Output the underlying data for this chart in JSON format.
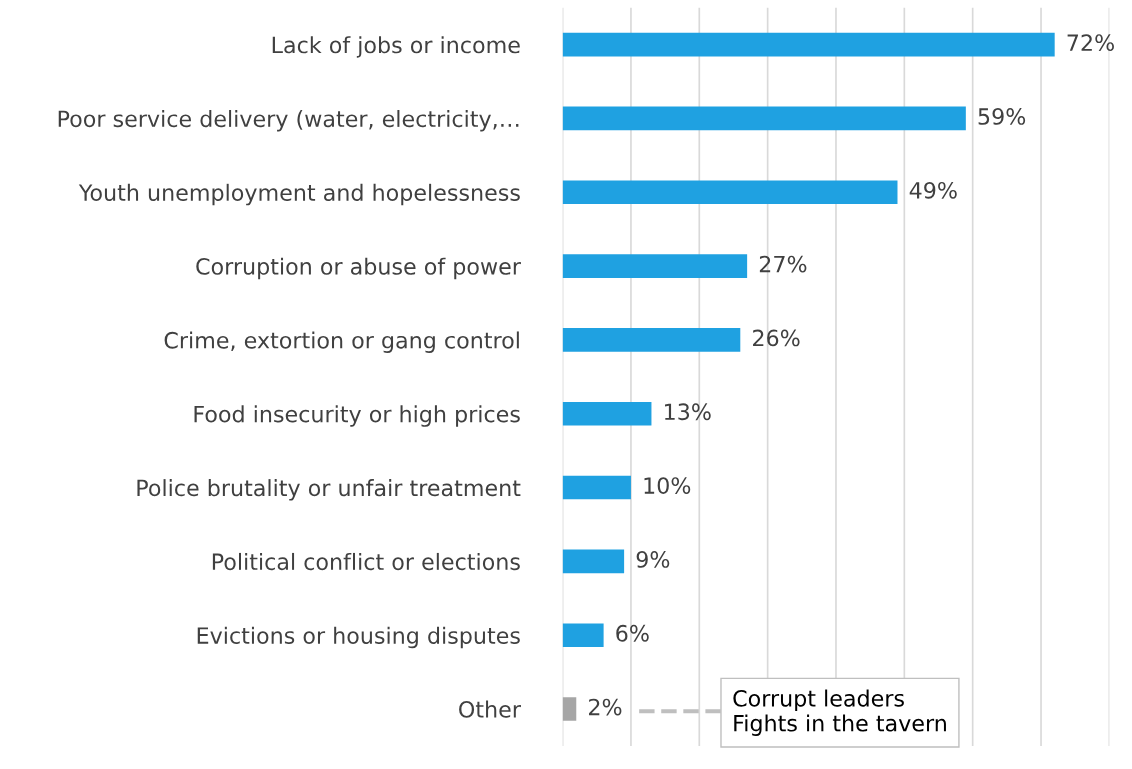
{
  "chart_data": {
    "type": "bar",
    "orientation": "horizontal",
    "categories": [
      "Lack of jobs or income",
      "Poor service delivery (water, electricity,…",
      "Youth unemployment and hopelessness",
      "Corruption or abuse of power",
      "Crime, extortion or gang control",
      "Food insecurity or high prices",
      "Police brutality or unfair treatment",
      "Political conflict or elections",
      "Evictions or housing disputes",
      "Other"
    ],
    "values": [
      72,
      59,
      49,
      27,
      26,
      13,
      10,
      9,
      6,
      2
    ],
    "colors": [
      "#1fa1e1",
      "#1fa1e1",
      "#1fa1e1",
      "#1fa1e1",
      "#1fa1e1",
      "#1fa1e1",
      "#1fa1e1",
      "#1fa1e1",
      "#1fa1e1",
      "#a6a6a6"
    ],
    "value_labels": [
      "72%",
      "59%",
      "49%",
      "27%",
      "26%",
      "13%",
      "10%",
      "9%",
      "6%",
      "2%"
    ],
    "xlim": [
      0,
      80
    ],
    "xticks": [
      {
        "value": 0,
        "label": null
      },
      {
        "value": 10,
        "label": null
      },
      {
        "value": 20,
        "label": null
      },
      {
        "value": 30,
        "label": null
      },
      {
        "value": 40,
        "label": null
      },
      {
        "value": 50,
        "label": null
      },
      {
        "value": 60,
        "label": null
      },
      {
        "value": 70,
        "label": null
      },
      {
        "value": 80,
        "label": null
      }
    ],
    "tick_labels": "y",
    "grid": "x",
    "legend": false,
    "annotations": [
      "Corrupt leaders\nFights in the tavern"
    ]
  }
}
